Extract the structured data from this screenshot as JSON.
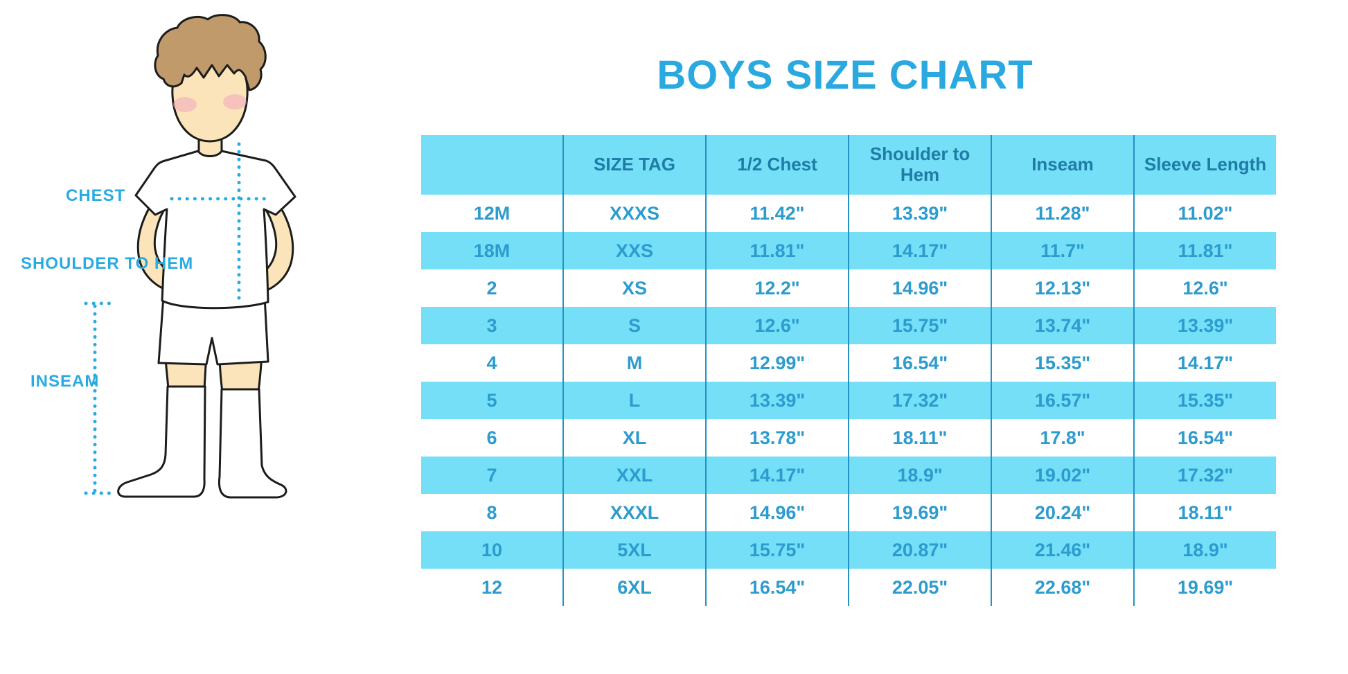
{
  "title": "BOYS SIZE CHART",
  "diagram": {
    "chest_label": "CHEST",
    "shoulder_to_hem_label": "SHOULDER TO HEM",
    "inseam_label": "INSEAM"
  },
  "chart_data": {
    "type": "table",
    "title": "BOYS SIZE CHART",
    "columns": [
      "",
      "SIZE TAG",
      "1/2 Chest",
      "Shoulder to Hem",
      "Inseam",
      "Sleeve Length"
    ],
    "rows": [
      [
        "12M",
        "XXXS",
        "11.42\"",
        "13.39\"",
        "11.28\"",
        "11.02\""
      ],
      [
        "18M",
        "XXS",
        "11.81\"",
        "14.17\"",
        "11.7\"",
        "11.81\""
      ],
      [
        "2",
        "XS",
        "12.2\"",
        "14.96\"",
        "12.13\"",
        "12.6\""
      ],
      [
        "3",
        "S",
        "12.6\"",
        "15.75\"",
        "13.74\"",
        "13.39\""
      ],
      [
        "4",
        "M",
        "12.99\"",
        "16.54\"",
        "15.35\"",
        "14.17\""
      ],
      [
        "5",
        "L",
        "13.39\"",
        "17.32\"",
        "16.57\"",
        "15.35\""
      ],
      [
        "6",
        "XL",
        "13.78\"",
        "18.11\"",
        "17.8\"",
        "16.54\""
      ],
      [
        "7",
        "XXL",
        "14.17\"",
        "18.9\"",
        "19.02\"",
        "17.32\""
      ],
      [
        "8",
        "XXXL",
        "14.96\"",
        "19.69\"",
        "20.24\"",
        "18.11\""
      ],
      [
        "10",
        "5XL",
        "15.75\"",
        "20.87\"",
        "21.46\"",
        "18.9\""
      ],
      [
        "12",
        "6XL",
        "16.54\"",
        "22.05\"",
        "22.68\"",
        "19.69\""
      ]
    ],
    "units": "inches",
    "row_striping": "alternate rows light blue, starting with white",
    "legend_position": "none",
    "grid": "vertical column separators only"
  },
  "colors": {
    "title_blue": "#29a9e0",
    "band_light_blue": "#74dff7",
    "header_text_blue": "#1e7ca6",
    "cell_text_blue": "#2c9bce",
    "column_line_blue": "#2492c4",
    "label_blue": "#29abe2",
    "dotted_line_blue": "#29abe2",
    "skin": "#fbe4ba",
    "hair_brown": "#c19a6c",
    "blush_pink": "#f2a8be",
    "outline_black": "#1c1c1c",
    "background": "#ffffff"
  }
}
